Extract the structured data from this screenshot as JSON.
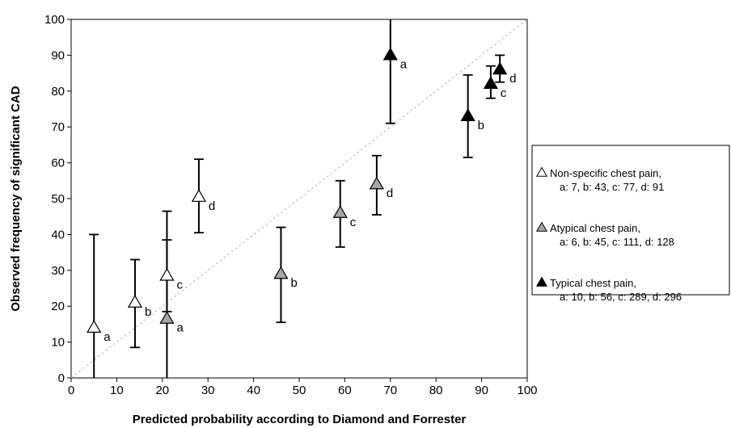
{
  "chart_data": {
    "type": "scatter",
    "xlabel": "Predicted probability according to Diamond and Forrester",
    "ylabel": "Observed frequency of significant CAD",
    "xlim": [
      0,
      100
    ],
    "ylim": [
      0,
      100
    ],
    "x_ticks": [
      0,
      10,
      20,
      30,
      40,
      50,
      60,
      70,
      80,
      90,
      100
    ],
    "y_ticks": [
      0,
      10,
      20,
      30,
      40,
      50,
      60,
      70,
      80,
      90,
      100
    ],
    "grid": false,
    "reference_line": {
      "style": "dotted",
      "from": [
        0,
        0
      ],
      "to": [
        100,
        100
      ]
    },
    "legend_position": "right",
    "series": [
      {
        "name": "Non-specific chest pain,",
        "legend_detail": "a: 7, b: 43, c: 77, d: 91",
        "marker": "triangle-open",
        "fill": "#ffffff",
        "points": [
          {
            "label": "a",
            "x": 5,
            "y": 14,
            "lo": 0,
            "hi": 40
          },
          {
            "label": "b",
            "x": 14,
            "y": 21,
            "lo": 8.5,
            "hi": 33
          },
          {
            "label": "c",
            "x": 21,
            "y": 28.5,
            "lo": 18.5,
            "hi": 46.5
          },
          {
            "label": "d",
            "x": 28,
            "y": 50.5,
            "lo": 40.5,
            "hi": 61
          }
        ]
      },
      {
        "name": "Atypical chest pain,",
        "legend_detail": "a: 6, b: 45, c: 111, d: 128",
        "marker": "triangle-gray",
        "fill": "#a6a6a6",
        "points": [
          {
            "label": "a",
            "x": 21,
            "y": 16.5,
            "lo": 0,
            "hi": 38.5
          },
          {
            "label": "b",
            "x": 46,
            "y": 29,
            "lo": 15.5,
            "hi": 42
          },
          {
            "label": "c",
            "x": 59,
            "y": 46,
            "lo": 36.5,
            "hi": 55
          },
          {
            "label": "d",
            "x": 67,
            "y": 54,
            "lo": 45.5,
            "hi": 62
          }
        ]
      },
      {
        "name": "Typical chest pain,",
        "legend_detail": "a: 10, b: 56, c: 289, d: 296",
        "marker": "triangle-filled",
        "fill": "#000000",
        "points": [
          {
            "label": "a",
            "x": 70,
            "y": 90,
            "lo": 71,
            "hi": 100
          },
          {
            "label": "b",
            "x": 87,
            "y": 73,
            "lo": 61.5,
            "hi": 84.5
          },
          {
            "label": "c",
            "x": 92,
            "y": 82,
            "lo": 78,
            "hi": 87
          },
          {
            "label": "d",
            "x": 94,
            "y": 86,
            "lo": 82.5,
            "hi": 90
          }
        ]
      }
    ]
  }
}
